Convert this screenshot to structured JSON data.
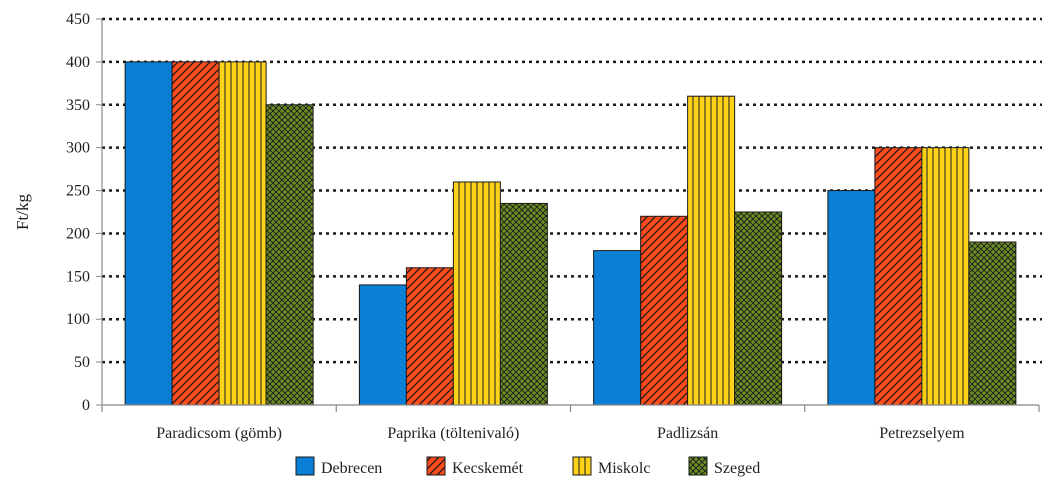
{
  "chart_data": {
    "type": "bar",
    "title": "",
    "xlabel": "",
    "ylabel": "Ft/kg",
    "ylim": [
      0,
      450
    ],
    "yticks": [
      0,
      50,
      100,
      150,
      200,
      250,
      300,
      350,
      400,
      450
    ],
    "grid": true,
    "legend_position": "bottom",
    "categories": [
      "Paradicsom (gömb)",
      "Paprika (töltenivaló)",
      "Padlizsán",
      "Petrezselyem"
    ],
    "series": [
      {
        "name": "Debrecen",
        "values": [
          400,
          140,
          180,
          250
        ],
        "color": "#0a7fd6",
        "pattern": "solid"
      },
      {
        "name": "Kecskemét",
        "values": [
          400,
          160,
          220,
          300
        ],
        "color": "#ff4a1c",
        "pattern": "diagonal"
      },
      {
        "name": "Miskolc",
        "values": [
          400,
          260,
          360,
          300
        ],
        "color": "#ffd21a",
        "pattern": "vertical"
      },
      {
        "name": "Szeged",
        "values": [
          350,
          235,
          225,
          190
        ],
        "color": "#6b8e23",
        "pattern": "crosshatch"
      }
    ]
  }
}
